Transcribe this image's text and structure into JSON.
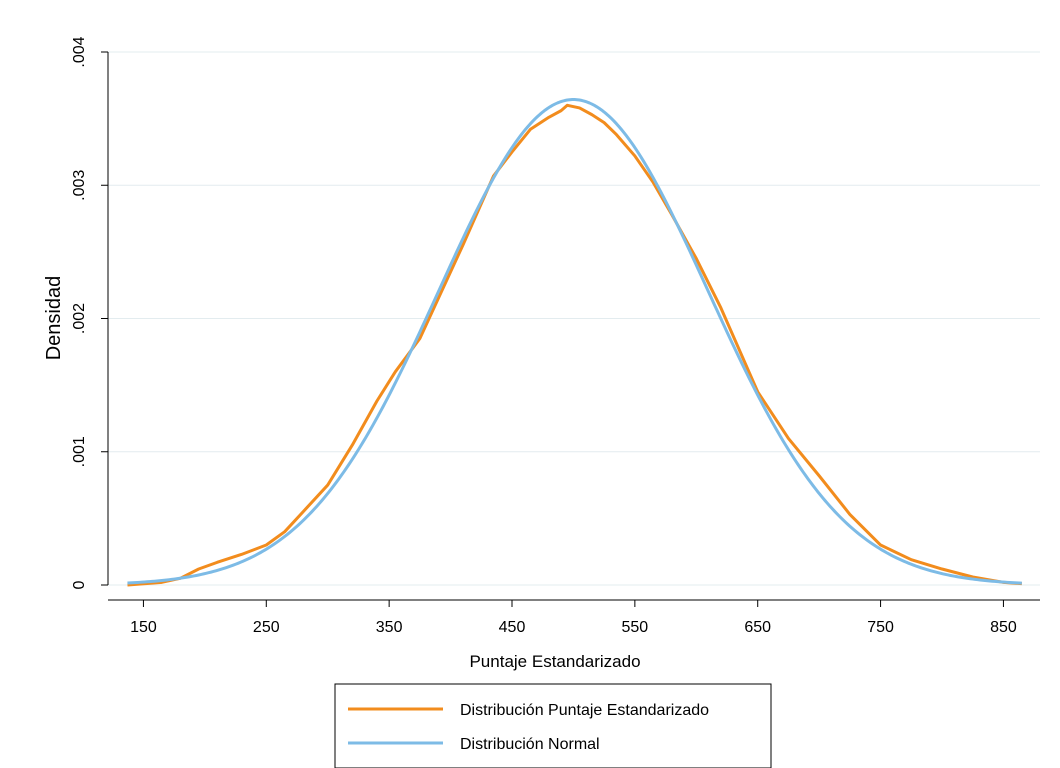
{
  "chart_data": {
    "type": "line",
    "title": "",
    "xlabel": "Puntaje Estandarizado",
    "ylabel": "Densidad",
    "xlim": [
      135,
      870
    ],
    "ylim": [
      0,
      0.004
    ],
    "x_ticks": [
      150,
      250,
      350,
      450,
      550,
      650,
      750,
      850
    ],
    "x_tick_labels": [
      "150",
      "250",
      "350",
      "450",
      "550",
      "650",
      "750",
      "850"
    ],
    "y_ticks": [
      0,
      0.001,
      0.002,
      0.003,
      0.004
    ],
    "y_tick_labels": [
      "0",
      ".001",
      ".002",
      ".003",
      ".004"
    ],
    "grid": true,
    "legend_position": "bottom",
    "series": [
      {
        "name": "Distribución Puntaje Estandarizado",
        "color": "#f28c1d",
        "x": [
          137,
          165,
          180,
          195,
          210,
          230,
          250,
          265,
          280,
          300,
          320,
          340,
          355,
          375,
          390,
          410,
          435,
          450,
          465,
          480,
          490,
          495,
          505,
          515,
          525,
          535,
          550,
          565,
          580,
          600,
          620,
          650,
          675,
          700,
          725,
          750,
          775,
          800,
          825,
          850,
          865
        ],
        "y": [
          0.0,
          2e-05,
          5e-05,
          0.00012,
          0.00017,
          0.00023,
          0.0003,
          0.0004,
          0.00055,
          0.00075,
          0.00105,
          0.00138,
          0.0016,
          0.00185,
          0.00215,
          0.00255,
          0.00307,
          0.00325,
          0.00342,
          0.00351,
          0.00356,
          0.0036,
          0.00358,
          0.00353,
          0.00347,
          0.00338,
          0.00322,
          0.00302,
          0.00278,
          0.00245,
          0.00208,
          0.00145,
          0.0011,
          0.00082,
          0.00053,
          0.0003,
          0.00019,
          0.00012,
          6e-05,
          2e-05,
          1e-05
        ]
      },
      {
        "name": "Distribución Normal",
        "color": "#7dbbe6",
        "mean": 500,
        "sd": 109.5,
        "x_range": [
          137,
          865
        ]
      }
    ]
  }
}
